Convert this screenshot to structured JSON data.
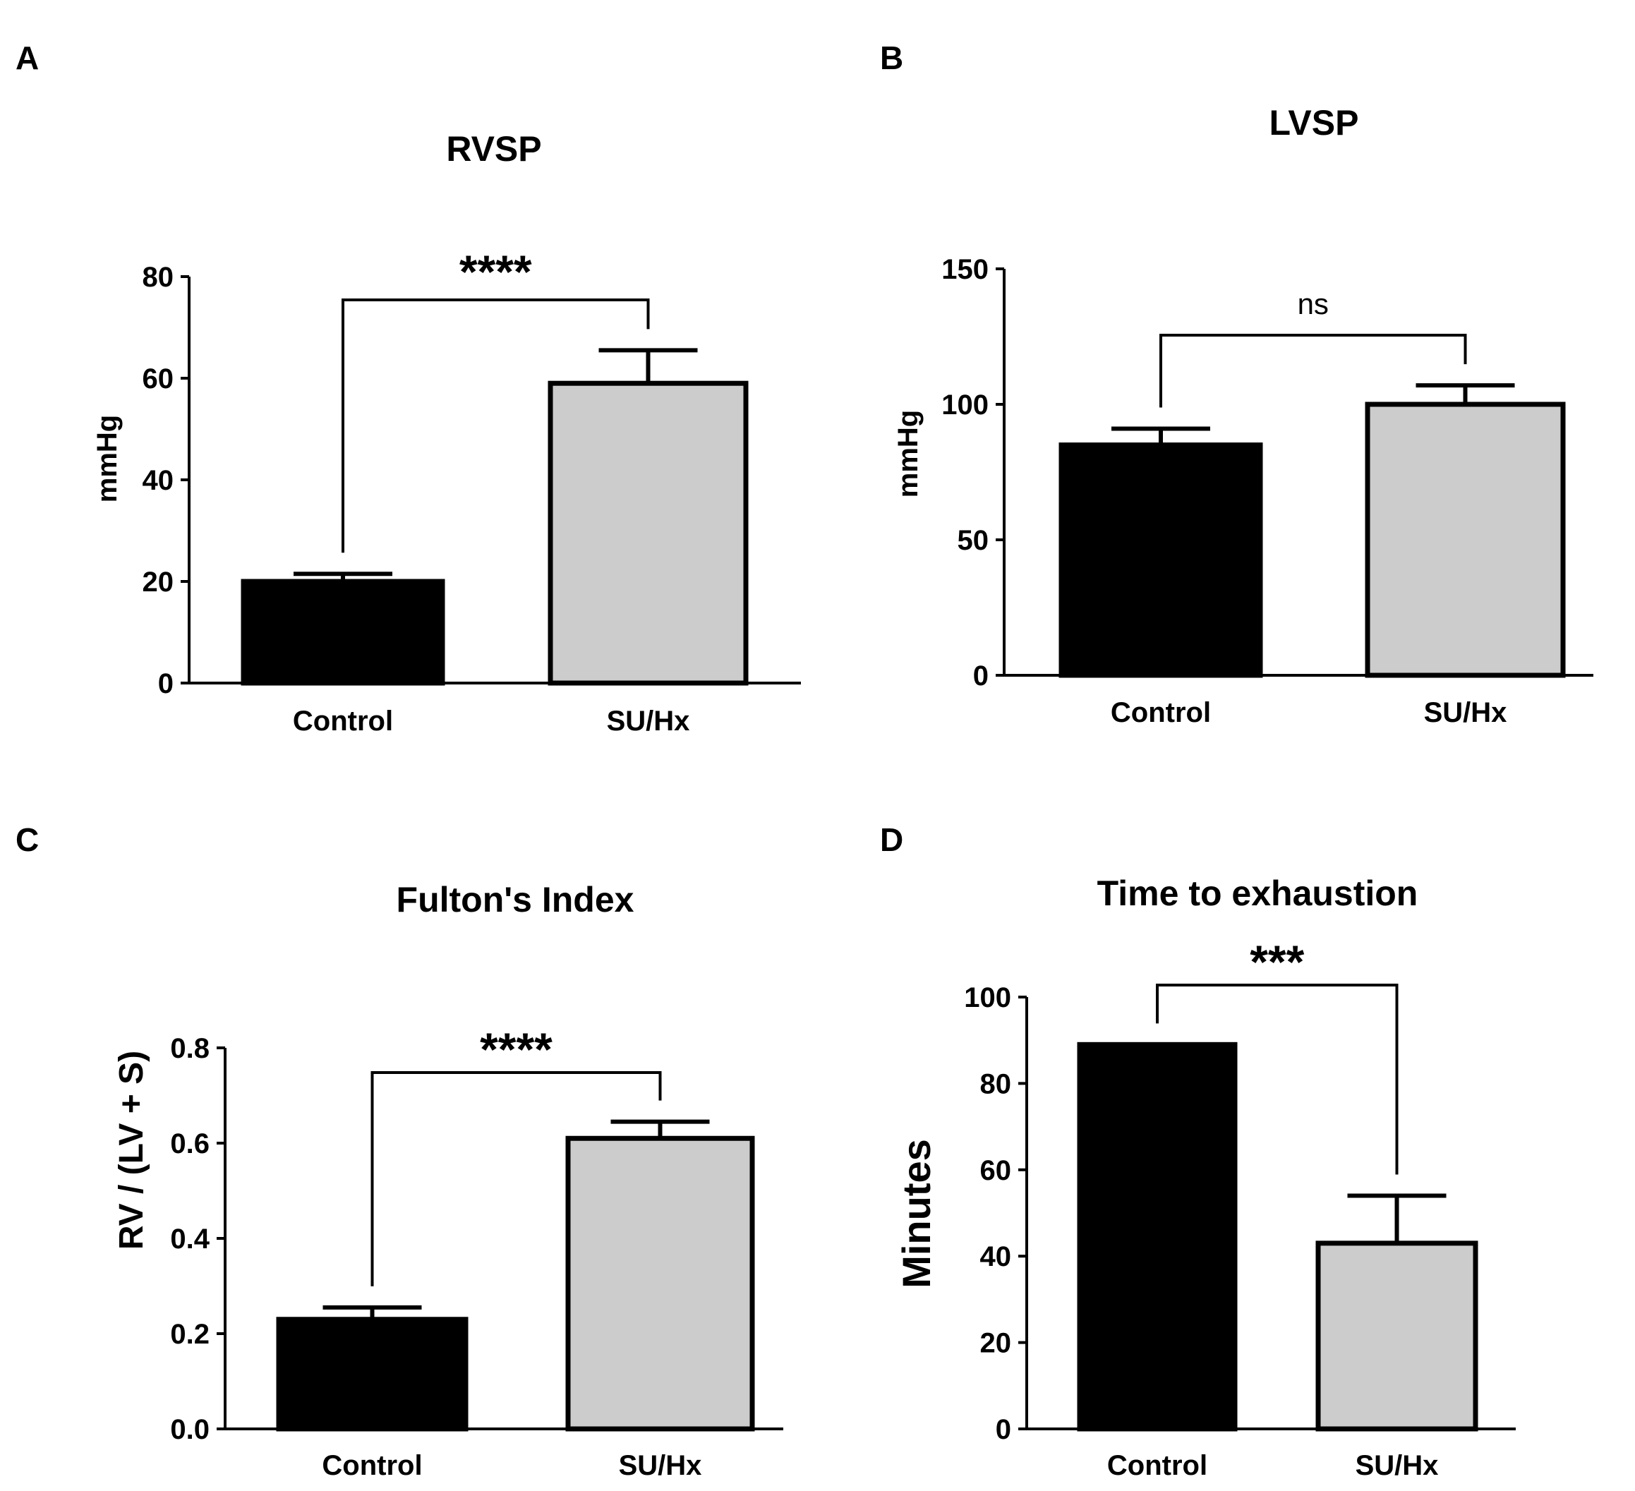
{
  "colors": {
    "control": "#000000",
    "suhx": "#cccccc",
    "axis": "#000000"
  },
  "chart_data": [
    {
      "panel": "A",
      "type": "bar",
      "title": "RVSP",
      "xlabel": "",
      "ylabel": "mmHg",
      "ylim": [
        0,
        80
      ],
      "yticks": [
        "0",
        "20",
        "40",
        "60",
        "80"
      ],
      "categories": [
        "Control",
        "SU/Hx"
      ],
      "values": [
        20,
        59
      ],
      "errors": [
        1.5,
        6.5
      ],
      "significance": "****"
    },
    {
      "panel": "B",
      "type": "bar",
      "title": "LVSP",
      "xlabel": "",
      "ylabel": "mmHg",
      "ylim": [
        0,
        150
      ],
      "yticks": [
        "0",
        "50",
        "100",
        "150"
      ],
      "categories": [
        "Control",
        "SU/Hx"
      ],
      "values": [
        85,
        100
      ],
      "errors": [
        6,
        7
      ],
      "significance": "ns"
    },
    {
      "panel": "C",
      "type": "bar",
      "title": "Fulton's Index",
      "xlabel": "",
      "ylabel": "RV / (LV + S)",
      "ylim": [
        0,
        0.8
      ],
      "yticks": [
        "0.0",
        "0.2",
        "0.4",
        "0.6",
        "0.8"
      ],
      "categories": [
        "Control",
        "SU/Hx"
      ],
      "values": [
        0.23,
        0.61
      ],
      "errors": [
        0.025,
        0.035
      ],
      "significance": "****"
    },
    {
      "panel": "D",
      "type": "bar",
      "title": "Time to exhaustion",
      "xlabel": "",
      "ylabel": "Minutes",
      "ylim": [
        0,
        100
      ],
      "yticks": [
        "0",
        "20",
        "40",
        "60",
        "80",
        "100"
      ],
      "categories": [
        "Control",
        "SU/Hx"
      ],
      "values": [
        89,
        43
      ],
      "errors": [
        0,
        11
      ],
      "significance": "***"
    }
  ]
}
